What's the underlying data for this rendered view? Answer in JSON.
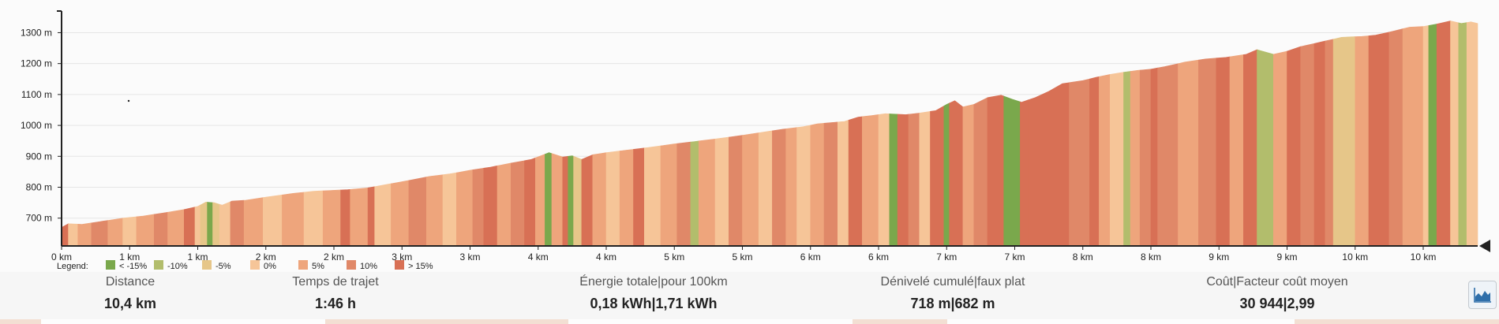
{
  "chart_data": {
    "type": "area",
    "title": "",
    "xlabel": "",
    "ylabel": "",
    "y_unit": "m",
    "x_unit": "km",
    "xlim": [
      0,
      10.4
    ],
    "ylim": [
      610,
      1370
    ],
    "yticks": [
      {
        "value": 700,
        "label": "700 m"
      },
      {
        "value": 800,
        "label": "800 m"
      },
      {
        "value": 900,
        "label": "900 m"
      },
      {
        "value": 1000,
        "label": "1000 m"
      },
      {
        "value": 1100,
        "label": "1100 m"
      },
      {
        "value": 1200,
        "label": "1200 m"
      },
      {
        "value": 1300,
        "label": "1300 m"
      }
    ],
    "xticks": [
      {
        "value": 0.0,
        "label": "0 km"
      },
      {
        "value": 0.5,
        "label": "1 km"
      },
      {
        "value": 1.0,
        "label": "1 km"
      },
      {
        "value": 1.5,
        "label": "2 km"
      },
      {
        "value": 2.0,
        "label": "2 km"
      },
      {
        "value": 2.5,
        "label": "3 km"
      },
      {
        "value": 3.0,
        "label": "3 km"
      },
      {
        "value": 3.5,
        "label": "4 km"
      },
      {
        "value": 4.0,
        "label": "4 km"
      },
      {
        "value": 4.5,
        "label": "5 km"
      },
      {
        "value": 5.0,
        "label": "5 km"
      },
      {
        "value": 5.5,
        "label": "6 km"
      },
      {
        "value": 6.0,
        "label": "6 km"
      },
      {
        "value": 6.5,
        "label": "7 km"
      },
      {
        "value": 7.0,
        "label": "7 km"
      },
      {
        "value": 7.5,
        "label": "8 km"
      },
      {
        "value": 8.0,
        "label": "8 km"
      },
      {
        "value": 8.5,
        "label": "9 km"
      },
      {
        "value": 9.0,
        "label": "9 km"
      },
      {
        "value": 9.5,
        "label": "10 km"
      },
      {
        "value": 10.0,
        "label": "10 km"
      }
    ],
    "grid": true,
    "legend_title": "Legend:",
    "legend_placement": "bottom-left",
    "legend": [
      {
        "label": "< -15%",
        "color": "#7aa84c"
      },
      {
        "label": "-10%",
        "color": "#b2bd6c"
      },
      {
        "label": "-5%",
        "color": "#e6c689"
      },
      {
        "label": "0%",
        "color": "#f6c598"
      },
      {
        "label": "5%",
        "color": "#eea57c"
      },
      {
        "label": "10%",
        "color": "#e08868"
      },
      {
        "label": "> 15%",
        "color": "#d87055"
      }
    ],
    "profile": [
      [
        0.0,
        670
      ],
      [
        0.05,
        682
      ],
      [
        0.15,
        680
      ],
      [
        0.3,
        690
      ],
      [
        0.45,
        700
      ],
      [
        0.6,
        707
      ],
      [
        0.75,
        717
      ],
      [
        0.9,
        728
      ],
      [
        1.0,
        738
      ],
      [
        1.06,
        752
      ],
      [
        1.12,
        750
      ],
      [
        1.18,
        742
      ],
      [
        1.25,
        755
      ],
      [
        1.35,
        758
      ],
      [
        1.5,
        768
      ],
      [
        1.7,
        780
      ],
      [
        1.85,
        787
      ],
      [
        2.1,
        792
      ],
      [
        2.25,
        798
      ],
      [
        2.4,
        810
      ],
      [
        2.55,
        822
      ],
      [
        2.7,
        835
      ],
      [
        2.85,
        843
      ],
      [
        3.0,
        855
      ],
      [
        3.15,
        865
      ],
      [
        3.3,
        878
      ],
      [
        3.45,
        890
      ],
      [
        3.58,
        912
      ],
      [
        3.68,
        898
      ],
      [
        3.75,
        902
      ],
      [
        3.82,
        890
      ],
      [
        3.9,
        905
      ],
      [
        4.0,
        912
      ],
      [
        4.15,
        920
      ],
      [
        4.3,
        928
      ],
      [
        4.5,
        940
      ],
      [
        4.65,
        948
      ],
      [
        4.8,
        956
      ],
      [
        5.0,
        968
      ],
      [
        5.15,
        978
      ],
      [
        5.3,
        988
      ],
      [
        5.45,
        996
      ],
      [
        5.55,
        1005
      ],
      [
        5.75,
        1013
      ],
      [
        5.85,
        1027
      ],
      [
        5.95,
        1032
      ],
      [
        6.05,
        1038
      ],
      [
        6.2,
        1035
      ],
      [
        6.3,
        1040
      ],
      [
        6.42,
        1048
      ],
      [
        6.5,
        1068
      ],
      [
        6.56,
        1080
      ],
      [
        6.62,
        1060
      ],
      [
        6.7,
        1068
      ],
      [
        6.8,
        1090
      ],
      [
        6.9,
        1098
      ],
      [
        6.98,
        1085
      ],
      [
        7.05,
        1075
      ],
      [
        7.15,
        1090
      ],
      [
        7.25,
        1110
      ],
      [
        7.35,
        1135
      ],
      [
        7.5,
        1145
      ],
      [
        7.6,
        1156
      ],
      [
        7.7,
        1165
      ],
      [
        7.8,
        1172
      ],
      [
        7.9,
        1178
      ],
      [
        8.0,
        1182
      ],
      [
        8.1,
        1190
      ],
      [
        8.25,
        1205
      ],
      [
        8.4,
        1215
      ],
      [
        8.55,
        1220
      ],
      [
        8.7,
        1230
      ],
      [
        8.78,
        1245
      ],
      [
        8.9,
        1230
      ],
      [
        9.0,
        1240
      ],
      [
        9.1,
        1255
      ],
      [
        9.25,
        1270
      ],
      [
        9.4,
        1285
      ],
      [
        9.55,
        1288
      ],
      [
        9.65,
        1292
      ],
      [
        9.78,
        1305
      ],
      [
        9.9,
        1318
      ],
      [
        10.0,
        1320
      ],
      [
        10.1,
        1328
      ],
      [
        10.2,
        1338
      ],
      [
        10.28,
        1330
      ],
      [
        10.35,
        1335
      ],
      [
        10.4,
        1330
      ]
    ],
    "segments": [
      {
        "to": 0.05,
        "cls": 6
      },
      {
        "to": 0.12,
        "cls": 3
      },
      {
        "to": 0.22,
        "cls": 4
      },
      {
        "to": 0.34,
        "cls": 5
      },
      {
        "to": 0.45,
        "cls": 4
      },
      {
        "to": 0.55,
        "cls": 3
      },
      {
        "to": 0.68,
        "cls": 4
      },
      {
        "to": 0.78,
        "cls": 5
      },
      {
        "to": 0.9,
        "cls": 4
      },
      {
        "to": 0.98,
        "cls": 6
      },
      {
        "to": 1.02,
        "cls": 3
      },
      {
        "to": 1.07,
        "cls": 2
      },
      {
        "to": 1.11,
        "cls": 0
      },
      {
        "to": 1.16,
        "cls": 2
      },
      {
        "to": 1.24,
        "cls": 3
      },
      {
        "to": 1.34,
        "cls": 5
      },
      {
        "to": 1.48,
        "cls": 4
      },
      {
        "to": 1.62,
        "cls": 3
      },
      {
        "to": 1.78,
        "cls": 4
      },
      {
        "to": 1.92,
        "cls": 3
      },
      {
        "to": 2.05,
        "cls": 4
      },
      {
        "to": 2.12,
        "cls": 6
      },
      {
        "to": 2.25,
        "cls": 4
      },
      {
        "to": 2.3,
        "cls": 6
      },
      {
        "to": 2.42,
        "cls": 3
      },
      {
        "to": 2.55,
        "cls": 4
      },
      {
        "to": 2.68,
        "cls": 5
      },
      {
        "to": 2.8,
        "cls": 4
      },
      {
        "to": 2.9,
        "cls": 3
      },
      {
        "to": 3.02,
        "cls": 4
      },
      {
        "to": 3.1,
        "cls": 5
      },
      {
        "to": 3.2,
        "cls": 6
      },
      {
        "to": 3.3,
        "cls": 4
      },
      {
        "to": 3.4,
        "cls": 5
      },
      {
        "to": 3.48,
        "cls": 6
      },
      {
        "to": 3.55,
        "cls": 4
      },
      {
        "to": 3.6,
        "cls": 0
      },
      {
        "to": 3.68,
        "cls": 4
      },
      {
        "to": 3.72,
        "cls": 6
      },
      {
        "to": 3.76,
        "cls": 0
      },
      {
        "to": 3.82,
        "cls": 2
      },
      {
        "to": 3.9,
        "cls": 6
      },
      {
        "to": 4.0,
        "cls": 4
      },
      {
        "to": 4.1,
        "cls": 3
      },
      {
        "to": 4.2,
        "cls": 4
      },
      {
        "to": 4.28,
        "cls": 6
      },
      {
        "to": 4.4,
        "cls": 3
      },
      {
        "to": 4.52,
        "cls": 4
      },
      {
        "to": 4.62,
        "cls": 5
      },
      {
        "to": 4.68,
        "cls": 1
      },
      {
        "to": 4.8,
        "cls": 4
      },
      {
        "to": 4.9,
        "cls": 3
      },
      {
        "to": 5.0,
        "cls": 5
      },
      {
        "to": 5.12,
        "cls": 4
      },
      {
        "to": 5.22,
        "cls": 3
      },
      {
        "to": 5.32,
        "cls": 5
      },
      {
        "to": 5.4,
        "cls": 4
      },
      {
        "to": 5.5,
        "cls": 3
      },
      {
        "to": 5.6,
        "cls": 4
      },
      {
        "to": 5.7,
        "cls": 5
      },
      {
        "to": 5.78,
        "cls": 3
      },
      {
        "to": 5.88,
        "cls": 6
      },
      {
        "to": 6.0,
        "cls": 4
      },
      {
        "to": 6.08,
        "cls": 3
      },
      {
        "to": 6.14,
        "cls": 0
      },
      {
        "to": 6.22,
        "cls": 6
      },
      {
        "to": 6.3,
        "cls": 5
      },
      {
        "to": 6.38,
        "cls": 3
      },
      {
        "to": 6.48,
        "cls": 6
      },
      {
        "to": 6.52,
        "cls": 0
      },
      {
        "to": 6.62,
        "cls": 6
      },
      {
        "to": 6.7,
        "cls": 4
      },
      {
        "to": 6.8,
        "cls": 5
      },
      {
        "to": 6.92,
        "cls": 6
      },
      {
        "to": 7.04,
        "cls": 0
      },
      {
        "to": 7.1,
        "cls": 6
      },
      {
        "to": 7.4,
        "cls": 6
      },
      {
        "to": 7.55,
        "cls": 5
      },
      {
        "to": 7.62,
        "cls": 6
      },
      {
        "to": 7.7,
        "cls": 4
      },
      {
        "to": 7.8,
        "cls": 3
      },
      {
        "to": 7.85,
        "cls": 1
      },
      {
        "to": 7.92,
        "cls": 4
      },
      {
        "to": 8.0,
        "cls": 5
      },
      {
        "to": 8.05,
        "cls": 6
      },
      {
        "to": 8.2,
        "cls": 5
      },
      {
        "to": 8.35,
        "cls": 4
      },
      {
        "to": 8.48,
        "cls": 5
      },
      {
        "to": 8.58,
        "cls": 6
      },
      {
        "to": 8.68,
        "cls": 4
      },
      {
        "to": 8.78,
        "cls": 6
      },
      {
        "to": 8.9,
        "cls": 1
      },
      {
        "to": 9.0,
        "cls": 4
      },
      {
        "to": 9.1,
        "cls": 6
      },
      {
        "to": 9.2,
        "cls": 5
      },
      {
        "to": 9.28,
        "cls": 6
      },
      {
        "to": 9.34,
        "cls": 5
      },
      {
        "to": 9.5,
        "cls": 2
      },
      {
        "to": 9.6,
        "cls": 4
      },
      {
        "to": 9.75,
        "cls": 6
      },
      {
        "to": 9.85,
        "cls": 5
      },
      {
        "to": 10.0,
        "cls": 4
      },
      {
        "to": 10.04,
        "cls": 3
      },
      {
        "to": 10.1,
        "cls": 0
      },
      {
        "to": 10.2,
        "cls": 6
      },
      {
        "to": 10.26,
        "cls": 3
      },
      {
        "to": 10.32,
        "cls": 1
      },
      {
        "to": 10.4,
        "cls": 3
      }
    ]
  },
  "stats": [
    {
      "label": "Distance",
      "value": "10,4 km"
    },
    {
      "label": "Temps de trajet",
      "value": "1:46 h"
    },
    {
      "label": "Énergie totale|pour 100km",
      "value": "0,18 kWh|1,71 kWh"
    },
    {
      "label": "Dénivelé cumulé|faux plat",
      "value": "718 m|682 m"
    },
    {
      "label": "Coût|Facteur coût moyen",
      "value": "30 944|2,99"
    }
  ],
  "colors": {
    "axis": "#222222",
    "grid": "#e6e6e6",
    "button_icon": "#2f6faa"
  },
  "icons": {
    "chart_toggle": "area-chart-icon",
    "end_marker": "triangle-left-icon"
  }
}
